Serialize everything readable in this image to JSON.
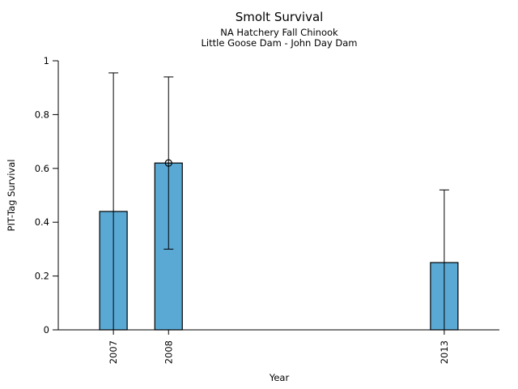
{
  "title": "Smolt Survival",
  "subtitle1": "NA Hatchery Fall Chinook",
  "subtitle2": "Little Goose Dam - John Day Dam",
  "chart_data": {
    "type": "bar",
    "title": "Smolt Survival",
    "subtitle1": "NA Hatchery Fall Chinook",
    "subtitle2": "Little Goose Dam - John Day Dam",
    "xlabel": "Year",
    "ylabel": "PIT-Tag Survival",
    "categories": [
      2007,
      2008,
      2013
    ],
    "values": [
      0.44,
      0.62,
      0.25
    ],
    "error_low": [
      0,
      0.3,
      0
    ],
    "error_high": [
      0.955,
      0.94,
      0.52
    ],
    "marker": {
      "category": 2008,
      "value": 0.62,
      "shape": "open-circle"
    },
    "yticks": [
      0,
      0.2,
      0.4,
      0.6,
      0.8,
      1
    ],
    "ylim": [
      0,
      1
    ],
    "xlim": [
      2006,
      2014
    ],
    "grid": false,
    "legend": false,
    "bar_color": "#5AA9D5",
    "bar_edge_color": "#000000",
    "axis_color": "#000000",
    "text_color": "#000000"
  }
}
